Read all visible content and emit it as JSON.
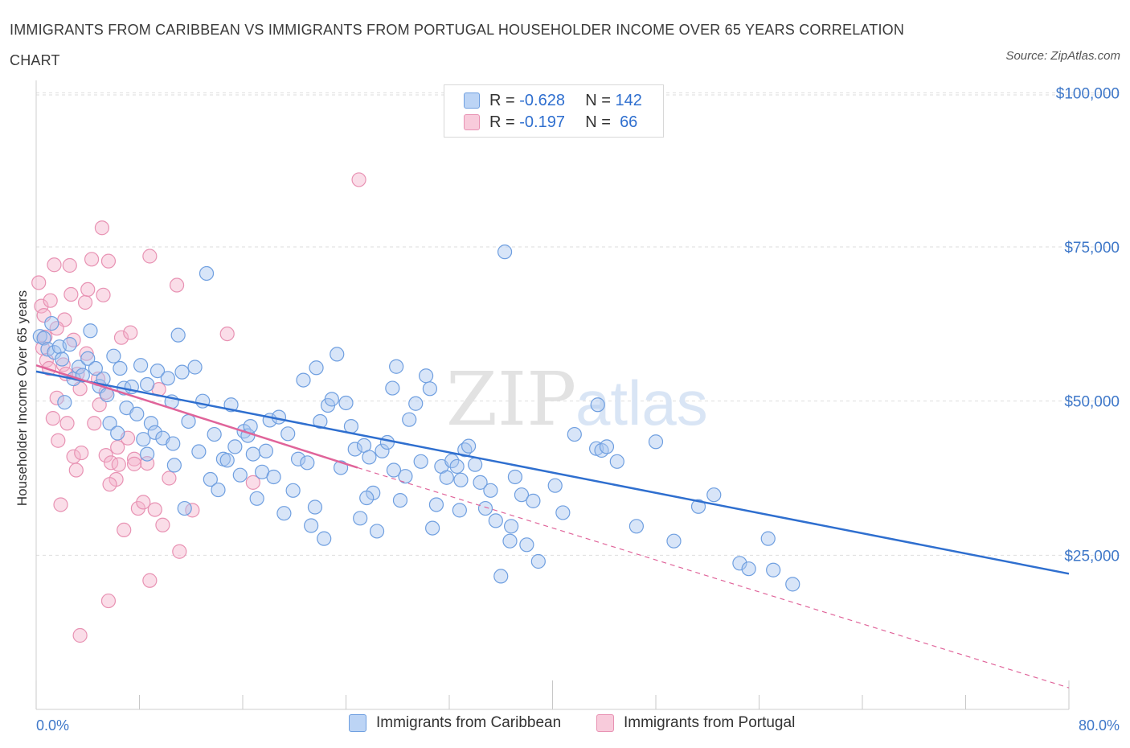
{
  "title": "IMMIGRANTS FROM CARIBBEAN VS IMMIGRANTS FROM PORTUGAL HOUSEHOLDER INCOME OVER 65 YEARS CORRELATION CHART",
  "source": "Source: ZipAtlas.com",
  "watermark": {
    "zip": "ZIP",
    "atlas": "atlas"
  },
  "legend": {
    "series1": {
      "r_label": "R =",
      "r_value": "-0.628",
      "n_label": "N =",
      "n_value": "142"
    },
    "series2": {
      "r_label": "R =",
      "r_value": "-0.197",
      "n_label": "N =",
      "n_value": "66"
    }
  },
  "bottom_legend": {
    "series1": "Immigrants from Caribbean",
    "series2": "Immigrants from Portugal"
  },
  "colors": {
    "blue": "#2f6fcf",
    "blue_fill": "#a9c6f0",
    "pink": "#e0649a",
    "pink_fill": "#f5b4cb",
    "axis_text": "#3f78c9"
  },
  "chart_data": {
    "type": "scatter",
    "ylabel": "Householder Income Over 65 years",
    "x_tick_labels": [
      "0.0%",
      "80.0%"
    ],
    "y_tick_labels": [
      "$25,000",
      "$50,000",
      "$75,000",
      "$100,000"
    ],
    "y_ticks": [
      25000,
      50000,
      75000,
      100000
    ],
    "xlim": [
      0,
      80
    ],
    "ylim": [
      0,
      102000
    ],
    "grid": true,
    "series": [
      {
        "name": "Immigrants from Caribbean",
        "trend": {
          "x": [
            0,
            80
          ],
          "y": [
            54800,
            22000
          ]
        },
        "points": [
          [
            0.3,
            60500
          ],
          [
            0.6,
            60200
          ],
          [
            0.9,
            58400
          ],
          [
            1.2,
            62600
          ],
          [
            1.4,
            57900
          ],
          [
            1.8,
            58800
          ],
          [
            2.0,
            56800
          ],
          [
            2.2,
            49800
          ],
          [
            2.6,
            59200
          ],
          [
            2.9,
            53600
          ],
          [
            3.3,
            55500
          ],
          [
            3.6,
            54200
          ],
          [
            4.0,
            56900
          ],
          [
            4.2,
            61400
          ],
          [
            4.6,
            55300
          ],
          [
            4.9,
            52400
          ],
          [
            5.2,
            53600
          ],
          [
            5.5,
            51000
          ],
          [
            5.7,
            46400
          ],
          [
            6.0,
            57300
          ],
          [
            6.3,
            44800
          ],
          [
            6.5,
            55300
          ],
          [
            6.8,
            52100
          ],
          [
            7.0,
            48900
          ],
          [
            7.4,
            52300
          ],
          [
            7.8,
            47900
          ],
          [
            8.1,
            55800
          ],
          [
            8.3,
            43800
          ],
          [
            8.6,
            52700
          ],
          [
            8.9,
            46400
          ],
          [
            9.2,
            44900
          ],
          [
            9.4,
            54900
          ],
          [
            9.8,
            44000
          ],
          [
            10.2,
            53700
          ],
          [
            10.5,
            49900
          ],
          [
            10.7,
            39600
          ],
          [
            11.0,
            60700
          ],
          [
            11.3,
            54700
          ],
          [
            11.5,
            32600
          ],
          [
            11.8,
            46700
          ],
          [
            12.3,
            55500
          ],
          [
            12.6,
            41800
          ],
          [
            12.9,
            50000
          ],
          [
            13.2,
            70700
          ],
          [
            13.5,
            37300
          ],
          [
            13.8,
            44600
          ],
          [
            14.1,
            35600
          ],
          [
            14.5,
            40600
          ],
          [
            14.8,
            40400
          ],
          [
            15.1,
            49400
          ],
          [
            15.4,
            42600
          ],
          [
            15.8,
            38000
          ],
          [
            16.1,
            45100
          ],
          [
            16.4,
            44400
          ],
          [
            16.8,
            41400
          ],
          [
            17.1,
            34200
          ],
          [
            17.5,
            38500
          ],
          [
            17.8,
            41900
          ],
          [
            18.1,
            46900
          ],
          [
            18.4,
            37700
          ],
          [
            18.8,
            47400
          ],
          [
            19.2,
            31800
          ],
          [
            19.5,
            44700
          ],
          [
            19.9,
            35500
          ],
          [
            20.3,
            40600
          ],
          [
            20.7,
            53400
          ],
          [
            21.0,
            40000
          ],
          [
            21.3,
            29800
          ],
          [
            21.7,
            55400
          ],
          [
            22.0,
            46700
          ],
          [
            22.3,
            27700
          ],
          [
            22.6,
            49300
          ],
          [
            22.9,
            50300
          ],
          [
            23.3,
            57600
          ],
          [
            23.6,
            39200
          ],
          [
            24.0,
            49700
          ],
          [
            24.4,
            45900
          ],
          [
            24.7,
            42200
          ],
          [
            25.1,
            31000
          ],
          [
            25.4,
            42800
          ],
          [
            25.8,
            40900
          ],
          [
            26.1,
            35100
          ],
          [
            26.4,
            28900
          ],
          [
            26.8,
            41900
          ],
          [
            27.2,
            43300
          ],
          [
            27.6,
            52100
          ],
          [
            27.9,
            55600
          ],
          [
            28.2,
            33900
          ],
          [
            28.6,
            37800
          ],
          [
            28.9,
            47000
          ],
          [
            29.4,
            49600
          ],
          [
            29.8,
            40200
          ],
          [
            30.2,
            54100
          ],
          [
            30.5,
            52000
          ],
          [
            31.0,
            33200
          ],
          [
            31.4,
            39400
          ],
          [
            31.8,
            37600
          ],
          [
            32.2,
            40300
          ],
          [
            32.6,
            39400
          ],
          [
            32.9,
            37200
          ],
          [
            33.2,
            42100
          ],
          [
            33.5,
            42700
          ],
          [
            34.0,
            39700
          ],
          [
            34.4,
            36800
          ],
          [
            34.8,
            32600
          ],
          [
            35.2,
            35500
          ],
          [
            35.6,
            30600
          ],
          [
            36.0,
            21600
          ],
          [
            36.3,
            74200
          ],
          [
            36.7,
            27300
          ],
          [
            37.1,
            37700
          ],
          [
            37.6,
            34800
          ],
          [
            38.0,
            26700
          ],
          [
            38.5,
            33800
          ],
          [
            38.9,
            24000
          ],
          [
            40.2,
            36300
          ],
          [
            41.7,
            44600
          ],
          [
            43.4,
            42300
          ],
          [
            43.8,
            42000
          ],
          [
            44.2,
            42600
          ],
          [
            43.5,
            49400
          ],
          [
            45.0,
            40200
          ],
          [
            46.5,
            29700
          ],
          [
            48.0,
            43400
          ],
          [
            49.4,
            27300
          ],
          [
            51.3,
            32900
          ],
          [
            52.5,
            34800
          ],
          [
            54.5,
            23700
          ],
          [
            55.2,
            22800
          ],
          [
            56.7,
            27700
          ],
          [
            57.1,
            22600
          ],
          [
            58.6,
            20300
          ],
          [
            16.6,
            45900
          ],
          [
            8.6,
            41400
          ],
          [
            27.7,
            38800
          ],
          [
            30.7,
            29400
          ],
          [
            10.6,
            43100
          ],
          [
            25.6,
            34300
          ],
          [
            21.6,
            32800
          ],
          [
            40.8,
            31900
          ],
          [
            32.8,
            32300
          ],
          [
            36.8,
            29700
          ]
        ]
      },
      {
        "name": "Immigrants from Portugal",
        "trend": {
          "x": [
            0,
            24.9
          ],
          "y": [
            55800,
            39200
          ]
        },
        "extrapolation": {
          "x": [
            24.9,
            80
          ],
          "y": [
            39200,
            3500
          ]
        },
        "points": [
          [
            0.2,
            69200
          ],
          [
            0.4,
            65400
          ],
          [
            0.5,
            58600
          ],
          [
            0.6,
            63900
          ],
          [
            0.7,
            60400
          ],
          [
            0.8,
            56600
          ],
          [
            1.0,
            55300
          ],
          [
            1.1,
            66300
          ],
          [
            1.3,
            47200
          ],
          [
            1.4,
            72100
          ],
          [
            1.6,
            50500
          ],
          [
            1.7,
            43600
          ],
          [
            1.9,
            33200
          ],
          [
            2.1,
            55900
          ],
          [
            2.2,
            63200
          ],
          [
            2.4,
            46400
          ],
          [
            2.6,
            72000
          ],
          [
            2.7,
            67300
          ],
          [
            2.9,
            41000
          ],
          [
            3.1,
            38800
          ],
          [
            3.2,
            54400
          ],
          [
            3.4,
            52000
          ],
          [
            3.5,
            41600
          ],
          [
            3.8,
            66000
          ],
          [
            4.0,
            68100
          ],
          [
            4.3,
            73000
          ],
          [
            4.5,
            46400
          ],
          [
            4.8,
            53600
          ],
          [
            5.1,
            78100
          ],
          [
            5.2,
            67200
          ],
          [
            5.4,
            41200
          ],
          [
            5.6,
            72700
          ],
          [
            5.8,
            40000
          ],
          [
            6.2,
            37300
          ],
          [
            6.4,
            39700
          ],
          [
            6.6,
            60300
          ],
          [
            6.8,
            29100
          ],
          [
            7.1,
            44000
          ],
          [
            7.3,
            61100
          ],
          [
            7.6,
            40600
          ],
          [
            7.9,
            32600
          ],
          [
            8.3,
            33600
          ],
          [
            8.6,
            39900
          ],
          [
            8.8,
            73500
          ],
          [
            9.2,
            32400
          ],
          [
            9.5,
            51900
          ],
          [
            9.8,
            29900
          ],
          [
            10.3,
            37500
          ],
          [
            10.9,
            68800
          ],
          [
            11.1,
            25600
          ],
          [
            12.1,
            32300
          ],
          [
            14.8,
            60900
          ],
          [
            1.6,
            61800
          ],
          [
            2.9,
            59900
          ],
          [
            3.9,
            57700
          ],
          [
            5.7,
            36500
          ],
          [
            4.9,
            49400
          ],
          [
            5.4,
            51400
          ],
          [
            6.3,
            42500
          ],
          [
            3.4,
            12000
          ],
          [
            5.6,
            17600
          ],
          [
            25.0,
            85900
          ],
          [
            16.8,
            36800
          ],
          [
            8.8,
            20900
          ],
          [
            7.6,
            39800
          ],
          [
            2.3,
            54400
          ]
        ]
      }
    ]
  }
}
